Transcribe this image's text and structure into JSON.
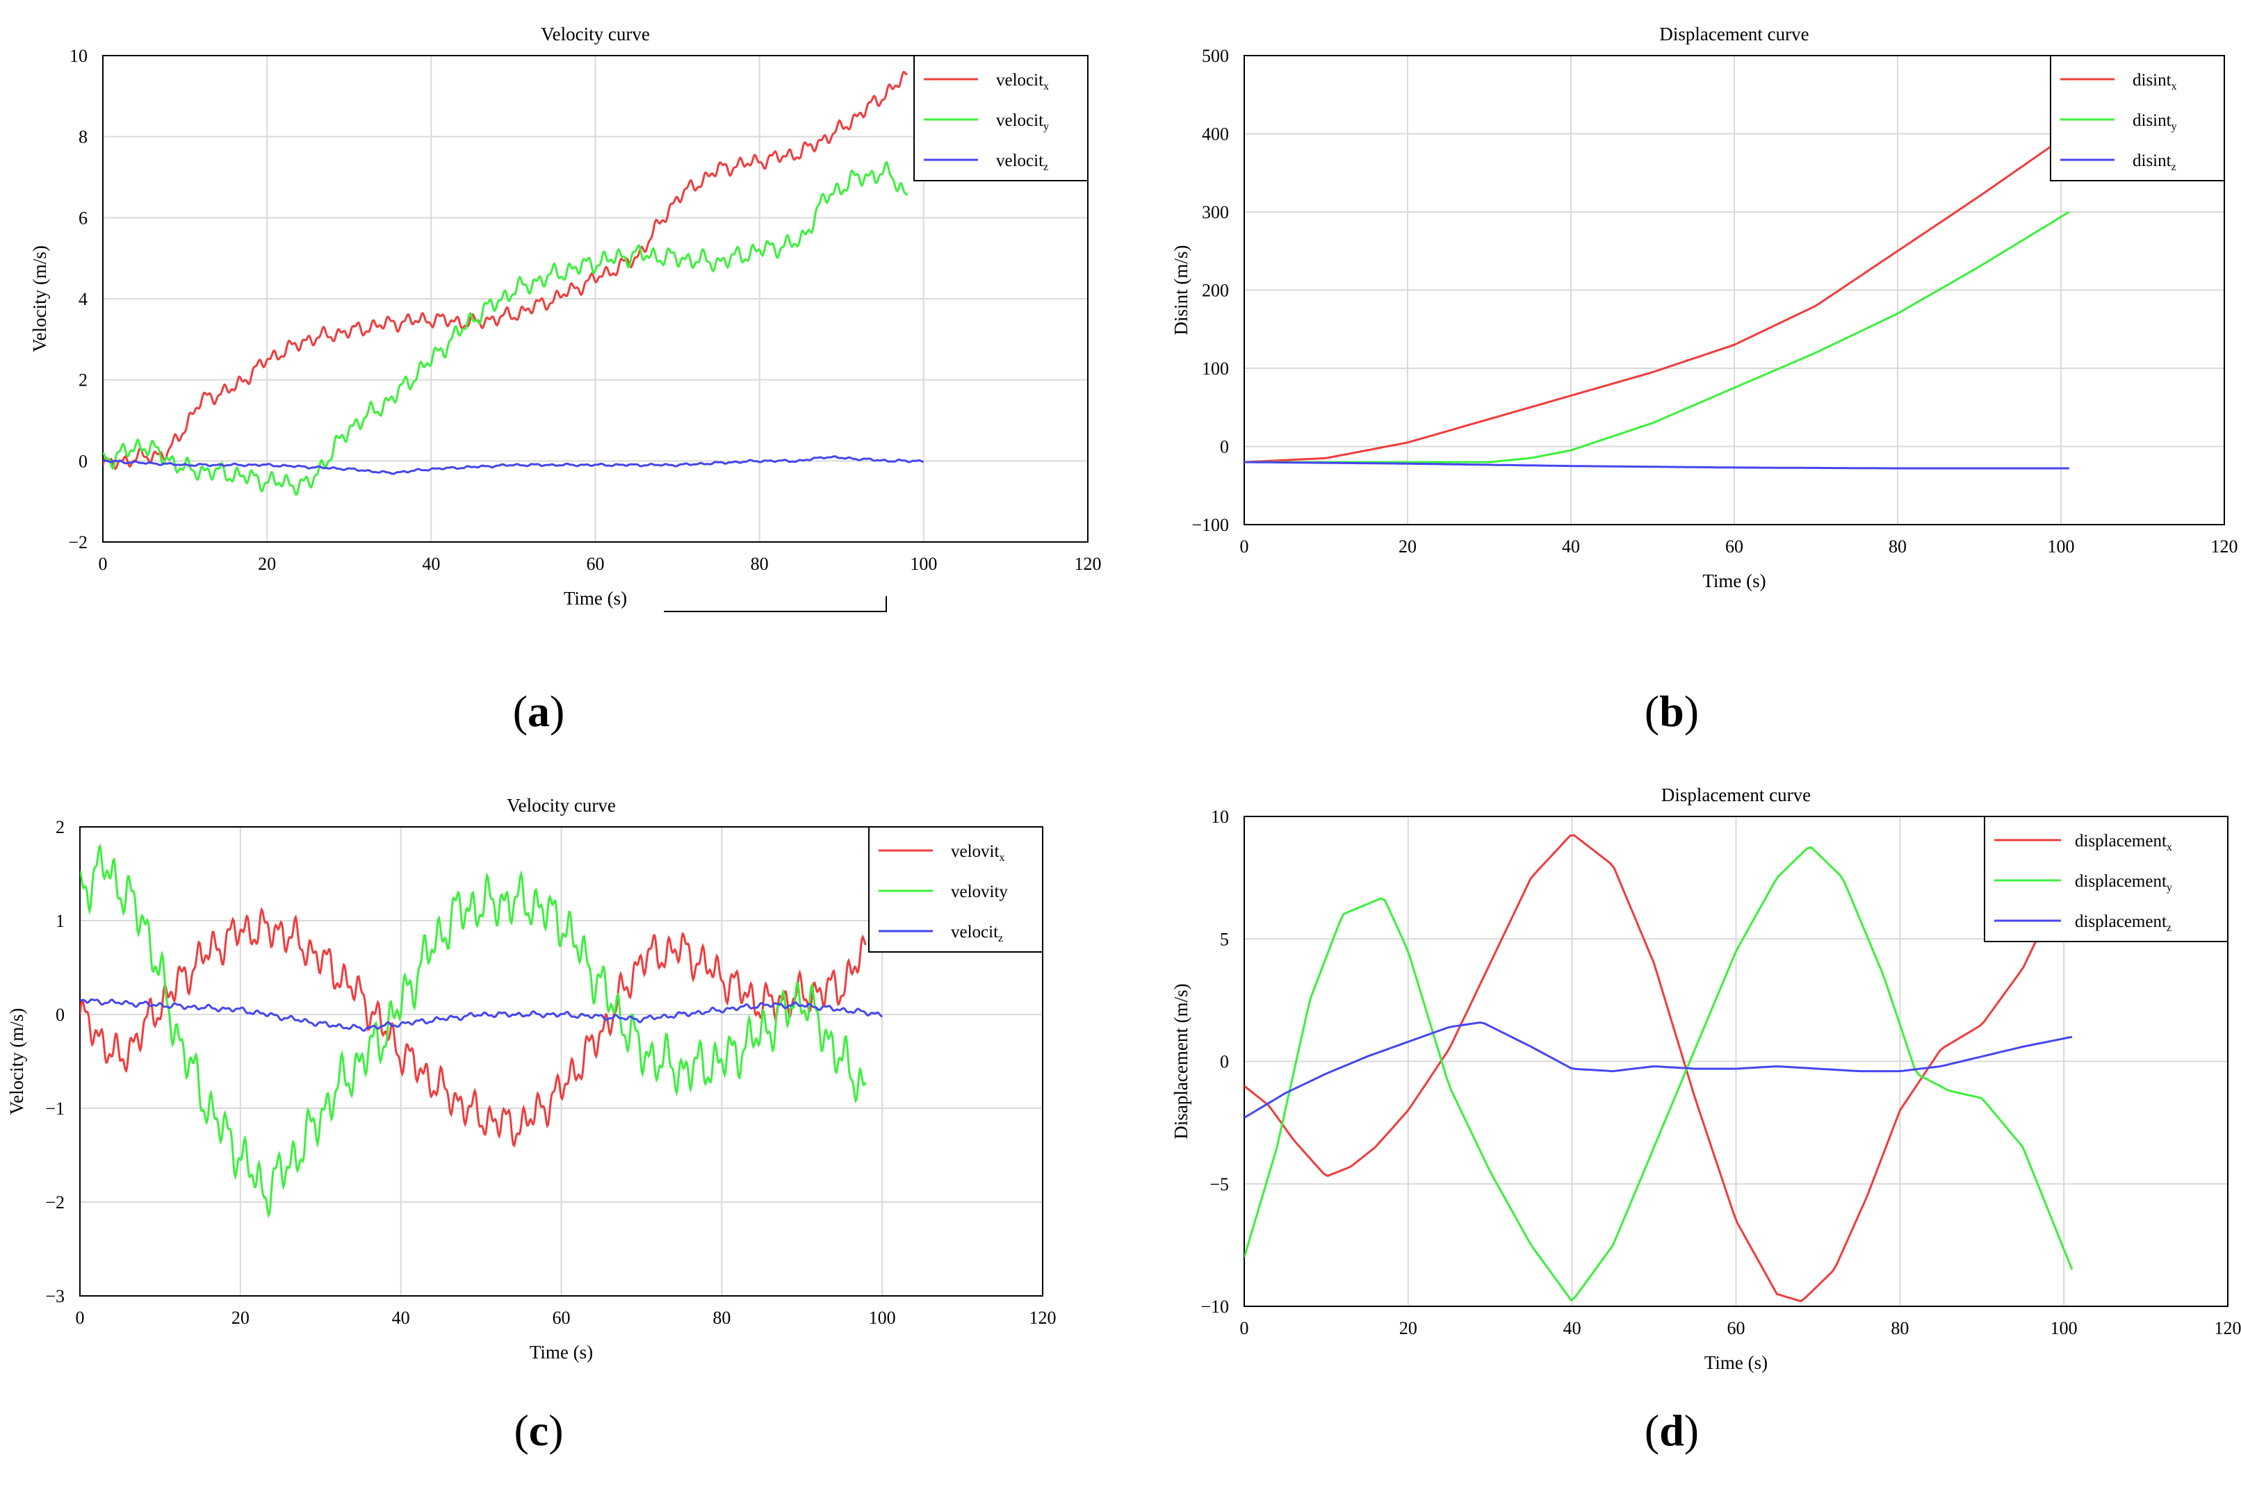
{
  "figure": {
    "panels": [
      {
        "label_open": "(",
        "label_letter": "a",
        "label_close": ")"
      },
      {
        "label_open": "(",
        "label_letter": "b",
        "label_close": ")"
      },
      {
        "label_open": "(",
        "label_letter": "c",
        "label_close": ")"
      },
      {
        "label_open": "(",
        "label_letter": "d",
        "label_close": ")"
      }
    ]
  },
  "colors": {
    "x": "#f03c3c",
    "y": "#3cf03c",
    "z": "#4646f0",
    "grid": "#d9d9d9",
    "axis": "#000000"
  },
  "chart_data": [
    {
      "type": "line",
      "title": "Velocity curve",
      "xlabel": "Time (s)",
      "ylabel": "Velocity (m/s)",
      "xlim": [
        0,
        120
      ],
      "ylim": [
        -2,
        10
      ],
      "xticks": [
        0,
        20,
        40,
        60,
        80,
        100,
        120
      ],
      "yticks": [
        -2,
        0,
        2,
        4,
        6,
        8,
        10
      ],
      "ytick_labels": [
        "−2",
        "0",
        "2",
        "4",
        "6",
        "8",
        "10"
      ],
      "grid": true,
      "legend_position": "top-right",
      "series": [
        {
          "name": "velocit",
          "sub": "x",
          "color_key": "x",
          "noise": 0.2,
          "x": [
            0,
            5,
            8,
            12,
            16,
            20,
            25,
            30,
            35,
            40,
            45,
            50,
            55,
            60,
            65,
            70,
            75,
            80,
            85,
            90,
            95,
            98
          ],
          "y": [
            -0.1,
            0.1,
            0.2,
            1.5,
            1.8,
            2.5,
            3.0,
            3.2,
            3.4,
            3.5,
            3.4,
            3.6,
            4.0,
            4.5,
            5.0,
            6.5,
            7.2,
            7.4,
            7.6,
            8.2,
            9.0,
            9.5
          ]
        },
        {
          "name": "velocit",
          "sub": "y",
          "color_key": "y",
          "noise": 0.25,
          "x": [
            0,
            5,
            10,
            15,
            20,
            25,
            30,
            35,
            40,
            45,
            50,
            55,
            60,
            65,
            70,
            75,
            80,
            85,
            88,
            92,
            96,
            98
          ],
          "y": [
            0.0,
            0.4,
            -0.2,
            -0.3,
            -0.5,
            -0.6,
            0.8,
            1.5,
            2.5,
            3.5,
            4.2,
            4.6,
            4.9,
            5.1,
            5.0,
            4.9,
            5.2,
            5.4,
            6.5,
            7.0,
            7.1,
            6.5
          ]
        },
        {
          "name": "velocit",
          "sub": "z",
          "color_key": "z",
          "noise": 0.03,
          "x": [
            0,
            10,
            20,
            30,
            35,
            40,
            50,
            60,
            70,
            80,
            85,
            88,
            92,
            96,
            100
          ],
          "y": [
            0.0,
            -0.1,
            -0.1,
            -0.2,
            -0.3,
            -0.2,
            -0.1,
            -0.1,
            -0.1,
            0.0,
            0.0,
            0.1,
            0.05,
            0.0,
            0.0
          ]
        }
      ]
    },
    {
      "type": "line",
      "title": "Displacement curve",
      "xlabel": "Time (s)",
      "ylabel": "Disint (m/s)",
      "xlim": [
        0,
        120
      ],
      "ylim": [
        -100,
        500
      ],
      "xticks": [
        0,
        20,
        40,
        60,
        80,
        100,
        120
      ],
      "yticks": [
        -100,
        0,
        100,
        200,
        300,
        400,
        500
      ],
      "ytick_labels": [
        "−100",
        "0",
        "100",
        "200",
        "300",
        "400",
        "500"
      ],
      "grid": true,
      "legend_position": "top-right",
      "series": [
        {
          "name": "disint",
          "sub": "x",
          "color_key": "x",
          "noise": 0,
          "x": [
            0,
            10,
            20,
            30,
            40,
            50,
            60,
            70,
            80,
            90,
            101
          ],
          "y": [
            -20,
            -15,
            5,
            35,
            65,
            95,
            130,
            180,
            250,
            320,
            400
          ]
        },
        {
          "name": "disint",
          "sub": "y",
          "color_key": "y",
          "noise": 0,
          "x": [
            0,
            10,
            20,
            30,
            35,
            40,
            50,
            60,
            70,
            80,
            90,
            101
          ],
          "y": [
            -20,
            -20,
            -20,
            -20,
            -15,
            -5,
            30,
            75,
            120,
            170,
            230,
            300
          ]
        },
        {
          "name": "disint",
          "sub": "z",
          "color_key": "z",
          "noise": 0,
          "x": [
            0,
            20,
            40,
            60,
            80,
            101
          ],
          "y": [
            -20,
            -22,
            -25,
            -27,
            -28,
            -28
          ]
        }
      ]
    },
    {
      "type": "line",
      "title": "Velocity curve",
      "xlabel": "Time (s)",
      "ylabel": "Velocity (m/s)",
      "xlim": [
        0,
        120
      ],
      "ylim": [
        -3,
        2
      ],
      "xticks": [
        0,
        20,
        40,
        60,
        80,
        100,
        120
      ],
      "yticks": [
        -3,
        -2,
        -1,
        0,
        1,
        2
      ],
      "ytick_labels": [
        "−3",
        "−2",
        "−1",
        "0",
        "1",
        "2"
      ],
      "grid": true,
      "legend_position": "top-right",
      "series": [
        {
          "name": "velovit",
          "sub": "x",
          "color_key": "x",
          "noise": 0.22,
          "x": [
            0,
            5,
            10,
            15,
            20,
            25,
            30,
            35,
            40,
            45,
            50,
            55,
            60,
            65,
            70,
            75,
            80,
            85,
            90,
            95,
            98
          ],
          "y": [
            0.0,
            -0.5,
            0.1,
            0.6,
            0.9,
            0.9,
            0.6,
            0.2,
            -0.4,
            -0.8,
            -1.1,
            -1.2,
            -0.8,
            -0.2,
            0.6,
            0.7,
            0.4,
            0.1,
            0.2,
            0.3,
            0.7
          ]
        },
        {
          "name": "velovity",
          "sub": "",
          "color_key": "y",
          "noise": 0.28,
          "x": [
            0,
            3,
            8,
            12,
            16,
            20,
            23,
            27,
            32,
            38,
            43,
            47,
            52,
            56,
            60,
            65,
            70,
            75,
            80,
            85,
            90,
            95,
            98
          ],
          "y": [
            1.3,
            1.6,
            1.0,
            -0.2,
            -1.0,
            -1.5,
            -1.9,
            -1.5,
            -0.8,
            -0.2,
            0.6,
            1.1,
            1.2,
            1.2,
            1.0,
            0.3,
            -0.4,
            -0.6,
            -0.5,
            -0.2,
            0.2,
            -0.5,
            -0.8
          ]
        },
        {
          "name": "velocit",
          "sub": "z",
          "color_key": "z",
          "noise": 0.03,
          "x": [
            0,
            10,
            20,
            30,
            35,
            40,
            50,
            60,
            70,
            80,
            85,
            90,
            95,
            100
          ],
          "y": [
            0.15,
            0.1,
            0.05,
            -0.1,
            -0.15,
            -0.1,
            0.0,
            0.0,
            -0.05,
            0.05,
            0.1,
            0.1,
            0.05,
            0.0
          ]
        }
      ]
    },
    {
      "type": "line",
      "title": "Displacement curve",
      "xlabel": "Time (s)",
      "ylabel": "Disaplacement (m/s)",
      "xlim": [
        0,
        120
      ],
      "ylim": [
        -10,
        10
      ],
      "xticks": [
        0,
        20,
        40,
        60,
        80,
        100,
        120
      ],
      "yticks": [
        -10,
        -5,
        0,
        5,
        10
      ],
      "ytick_labels": [
        "−10",
        "−5",
        "0",
        "5",
        "10"
      ],
      "grid": true,
      "legend_position": "top-right",
      "series": [
        {
          "name": "displacement",
          "sub": "x",
          "color_key": "x",
          "noise": 0,
          "x": [
            0,
            3,
            6,
            10,
            13,
            16,
            20,
            25,
            30,
            35,
            40,
            45,
            50,
            55,
            60,
            65,
            68,
            72,
            76,
            80,
            85,
            90,
            95,
            97
          ],
          "y": [
            -1.0,
            -1.8,
            -3.2,
            -4.7,
            -4.3,
            -3.5,
            -2.0,
            0.5,
            4.0,
            7.5,
            9.3,
            8.0,
            4.0,
            -1.5,
            -6.5,
            -9.5,
            -9.8,
            -8.5,
            -5.5,
            -2.0,
            0.5,
            1.5,
            3.8,
            5.2
          ]
        },
        {
          "name": "displacement",
          "sub": "y",
          "color_key": "y",
          "noise": 0,
          "x": [
            0,
            4,
            8,
            12,
            17,
            20,
            25,
            30,
            35,
            40,
            45,
            50,
            55,
            60,
            65,
            69,
            73,
            78,
            82,
            86,
            90,
            95,
            101
          ],
          "y": [
            -8.0,
            -3.5,
            2.5,
            6.0,
            6.7,
            4.5,
            -1.0,
            -4.5,
            -7.5,
            -9.8,
            -7.5,
            -3.5,
            0.5,
            4.5,
            7.5,
            8.8,
            7.5,
            3.5,
            -0.5,
            -1.2,
            -1.5,
            -3.5,
            -8.5
          ]
        },
        {
          "name": "displacement",
          "sub": "z",
          "color_key": "z",
          "noise": 0,
          "x": [
            0,
            5,
            10,
            15,
            20,
            25,
            29,
            35,
            40,
            45,
            50,
            55,
            60,
            65,
            70,
            75,
            80,
            85,
            90,
            95,
            101
          ],
          "y": [
            -2.3,
            -1.3,
            -0.5,
            0.2,
            0.8,
            1.4,
            1.6,
            0.6,
            -0.3,
            -0.4,
            -0.2,
            -0.3,
            -0.3,
            -0.2,
            -0.3,
            -0.4,
            -0.4,
            -0.2,
            0.2,
            0.6,
            1.0
          ]
        }
      ]
    }
  ]
}
